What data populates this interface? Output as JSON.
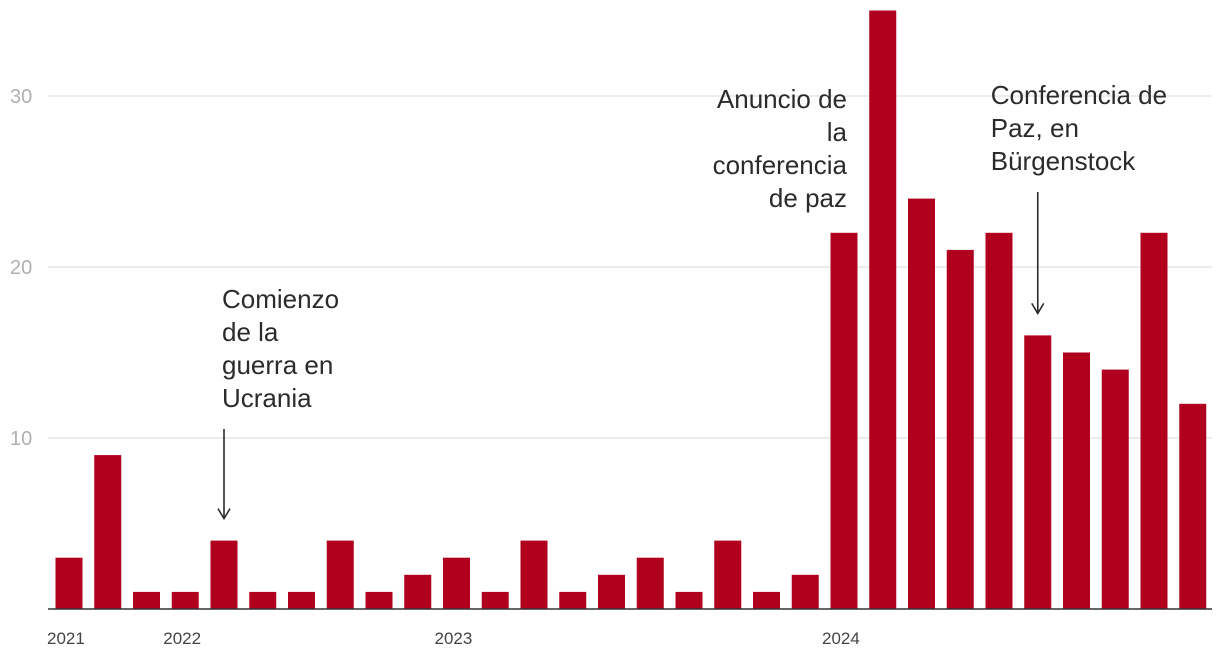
{
  "chart_data": {
    "type": "bar",
    "title": "",
    "xlabel": "",
    "ylabel": "",
    "ylim": [
      0,
      35
    ],
    "grid": true,
    "bar_color": "#b0001e",
    "y_ticks": [
      10,
      20,
      30
    ],
    "x_tick_labels": [
      {
        "label": "2021",
        "index": 0
      },
      {
        "label": "2022",
        "index": 3
      },
      {
        "label": "2023",
        "index": 10
      },
      {
        "label": "2024",
        "index": 20
      }
    ],
    "values": [
      3,
      9,
      1,
      1,
      4,
      1,
      1,
      4,
      1,
      2,
      3,
      1,
      4,
      1,
      2,
      3,
      1,
      4,
      1,
      2,
      22,
      35,
      24,
      21,
      22,
      16,
      15,
      14,
      22,
      12
    ],
    "annotations": [
      {
        "lines": [
          "Comienzo",
          "de la",
          "guerra en",
          "Ucrania"
        ],
        "bar_index": 4,
        "align": "left"
      },
      {
        "lines": [
          "Anuncio de",
          "la",
          "conferencia",
          "de paz"
        ],
        "bar_index": 20,
        "align": "right"
      },
      {
        "lines": [
          "Conferencia de",
          "Paz, en",
          "Bürgenstock"
        ],
        "bar_index": 25,
        "align": "left"
      }
    ]
  }
}
